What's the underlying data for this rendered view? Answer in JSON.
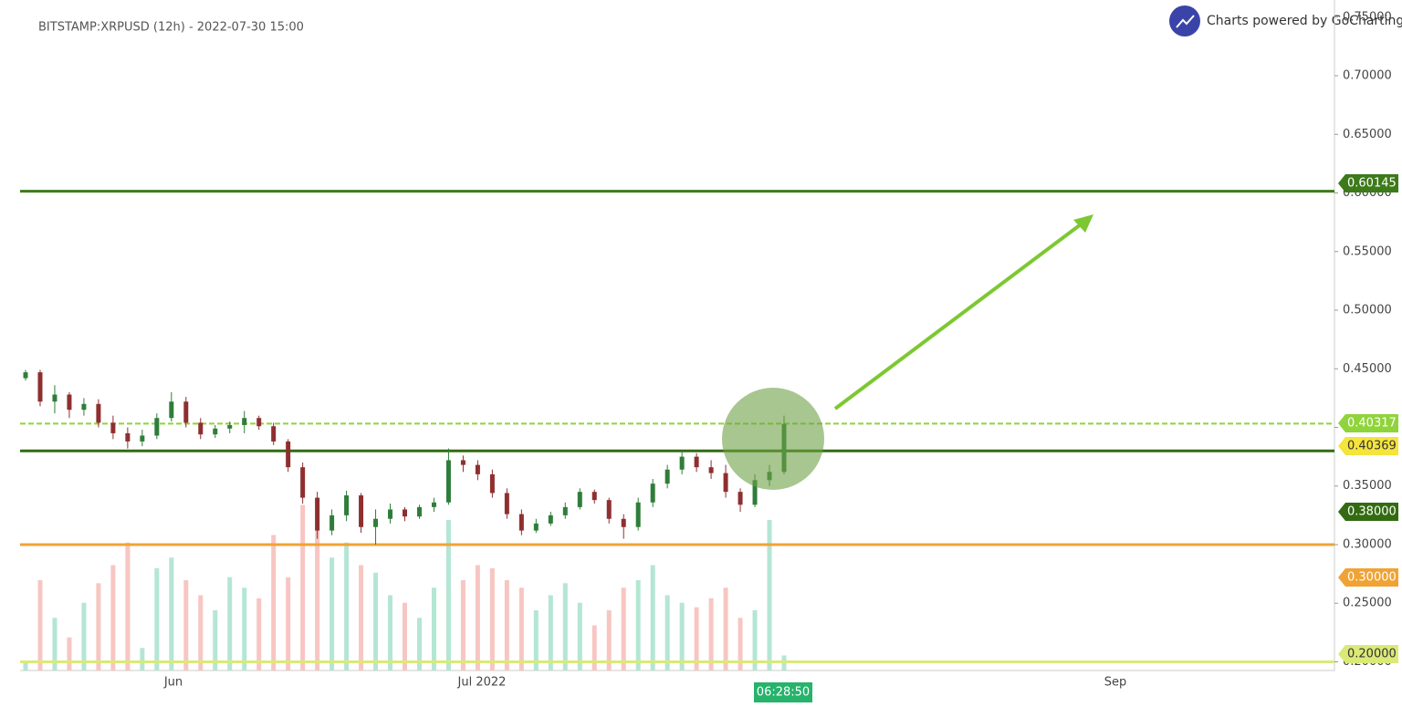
{
  "chart_data": {
    "type": "candlestick",
    "title": "BITSTAMP:XRPUSD (12h) - 2022-07-30 15:00",
    "branding": "Charts powered by GoCharting",
    "countdown": "06:28:50",
    "up_color": "#2f7d3a",
    "down_color": "#8e2f2f",
    "volume_up_color": "#b4e6d4",
    "volume_down_color": "#f7c6c2",
    "x_labels": [
      "Jun",
      "Jul 2022",
      "Sep"
    ],
    "ylim": [
      0.1926,
      0.7646
    ],
    "yticks": [
      {
        "value": 0.2,
        "label": "0.20000"
      },
      {
        "value": 0.25,
        "label": "0.25000"
      },
      {
        "value": 0.3,
        "label": "0.30000"
      },
      {
        "value": 0.35,
        "label": "0.35000"
      },
      {
        "value": 0.4,
        "label": "0.40000"
      },
      {
        "value": 0.45,
        "label": "0.45000"
      },
      {
        "value": 0.5,
        "label": "0.50000"
      },
      {
        "value": 0.55,
        "label": "0.55000"
      },
      {
        "value": 0.6,
        "label": "0.60000"
      },
      {
        "value": 0.65,
        "label": "0.65000"
      },
      {
        "value": 0.7,
        "label": "0.70000"
      },
      {
        "value": 0.75,
        "label": "0.75000"
      }
    ],
    "levels": [
      {
        "value": 0.60145,
        "label": "0.60145",
        "color": "#3d7a1a",
        "dashed": false
      },
      {
        "value": 0.40317,
        "label": "0.40317",
        "color": "#8fd43a",
        "dashed": true
      },
      {
        "value": 0.38,
        "label": "0.38000",
        "color": "#336b12",
        "dashed": false
      },
      {
        "value": 0.3,
        "label": "0.30000",
        "color": "#f0a334",
        "dashed": false
      },
      {
        "value": 0.2,
        "label": "0.20000",
        "color": "#dbe977",
        "dashed": false
      }
    ],
    "last_price": {
      "value": 0.40369,
      "label": "0.40369",
      "color": "#f4e43c"
    },
    "candles": {
      "open": [
        0.442,
        0.447,
        0.422,
        0.428,
        0.415,
        0.42,
        0.404,
        0.395,
        0.388,
        0.393,
        0.408,
        0.422,
        0.404,
        0.394,
        0.399,
        0.402,
        0.408,
        0.401,
        0.388,
        0.366,
        0.34,
        0.312,
        0.325,
        0.342,
        0.315,
        0.322,
        0.33,
        0.324,
        0.332,
        0.336,
        0.372,
        0.368,
        0.36,
        0.344,
        0.326,
        0.312,
        0.318,
        0.325,
        0.332,
        0.345,
        0.338,
        0.322,
        0.315,
        0.336,
        0.352,
        0.364,
        0.375,
        0.366,
        0.361,
        0.345,
        0.334,
        0.355,
        0.362
      ],
      "high": [
        0.449,
        0.449,
        0.436,
        0.43,
        0.425,
        0.424,
        0.41,
        0.4,
        0.398,
        0.412,
        0.43,
        0.426,
        0.408,
        0.402,
        0.405,
        0.414,
        0.41,
        0.404,
        0.39,
        0.37,
        0.345,
        0.33,
        0.346,
        0.344,
        0.33,
        0.335,
        0.332,
        0.334,
        0.34,
        0.382,
        0.376,
        0.372,
        0.364,
        0.348,
        0.33,
        0.322,
        0.328,
        0.336,
        0.348,
        0.347,
        0.34,
        0.326,
        0.34,
        0.356,
        0.368,
        0.38,
        0.378,
        0.372,
        0.368,
        0.348,
        0.36,
        0.368,
        0.41
      ],
      "low": [
        0.44,
        0.418,
        0.412,
        0.408,
        0.41,
        0.4,
        0.39,
        0.382,
        0.384,
        0.39,
        0.405,
        0.4,
        0.39,
        0.391,
        0.395,
        0.395,
        0.398,
        0.385,
        0.362,
        0.335,
        0.305,
        0.308,
        0.32,
        0.31,
        0.3,
        0.318,
        0.32,
        0.322,
        0.328,
        0.334,
        0.362,
        0.355,
        0.34,
        0.322,
        0.308,
        0.31,
        0.316,
        0.322,
        0.33,
        0.335,
        0.318,
        0.305,
        0.312,
        0.332,
        0.348,
        0.36,
        0.362,
        0.356,
        0.34,
        0.328,
        0.332,
        0.35,
        0.36
      ],
      "close": [
        0.447,
        0.422,
        0.428,
        0.415,
        0.42,
        0.404,
        0.395,
        0.388,
        0.393,
        0.408,
        0.422,
        0.404,
        0.394,
        0.399,
        0.402,
        0.408,
        0.401,
        0.388,
        0.366,
        0.34,
        0.312,
        0.325,
        0.342,
        0.315,
        0.322,
        0.33,
        0.324,
        0.332,
        0.336,
        0.372,
        0.368,
        0.36,
        0.344,
        0.326,
        0.312,
        0.318,
        0.325,
        0.332,
        0.345,
        0.338,
        0.322,
        0.315,
        0.336,
        0.352,
        0.364,
        0.375,
        0.366,
        0.361,
        0.345,
        0.334,
        0.355,
        0.362,
        0.403
      ],
      "volume": [
        6,
        60,
        35,
        22,
        45,
        58,
        70,
        85,
        15,
        68,
        75,
        60,
        50,
        40,
        62,
        55,
        48,
        90,
        62,
        110,
        95,
        75,
        85,
        70,
        65,
        50,
        45,
        35,
        55,
        100,
        60,
        70,
        68,
        60,
        55,
        40,
        50,
        58,
        45,
        30,
        40,
        55,
        60,
        70,
        50,
        45,
        42,
        48,
        55,
        35,
        40,
        100,
        10
      ]
    }
  }
}
